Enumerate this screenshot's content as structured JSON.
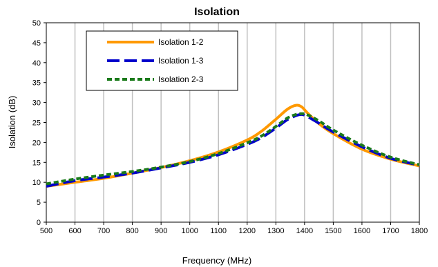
{
  "chart_data": {
    "type": "line",
    "title": "Isolation",
    "xlabel": "Frequency (MHz)",
    "ylabel": "Isolation (dB)",
    "xlim": [
      500,
      1800
    ],
    "ylim": [
      0,
      50
    ],
    "xticks": [
      500,
      600,
      700,
      800,
      900,
      1000,
      1100,
      1200,
      1300,
      1400,
      1500,
      1600,
      1700,
      1800
    ],
    "yticks": [
      0,
      5,
      10,
      15,
      20,
      25,
      30,
      35,
      40,
      45,
      50
    ],
    "grid": {
      "vertical": true,
      "horizontal": false
    },
    "legend": {
      "placement": "top-left"
    },
    "x": [
      500,
      600,
      700,
      800,
      900,
      1000,
      1100,
      1200,
      1250,
      1300,
      1340,
      1370,
      1390,
      1410,
      1450,
      1500,
      1600,
      1700,
      1800
    ],
    "series": [
      {
        "name": "Isolation 1-2",
        "color": "#FF9900",
        "dash": "solid",
        "values": [
          9.0,
          10.0,
          11.0,
          12.3,
          13.7,
          15.4,
          17.6,
          20.6,
          22.8,
          25.8,
          28.3,
          29.3,
          28.9,
          27.4,
          24.7,
          22.2,
          18.3,
          15.8,
          14.1
        ]
      },
      {
        "name": "Isolation 1-3",
        "color": "#0000CC",
        "dash": "long-dash",
        "values": [
          9.0,
          10.4,
          11.3,
          12.3,
          13.6,
          15.0,
          16.9,
          19.5,
          21.2,
          23.6,
          25.7,
          26.7,
          27.0,
          26.5,
          24.8,
          22.6,
          18.9,
          16.0,
          14.3
        ]
      },
      {
        "name": "Isolation 2-3",
        "color": "#1A7A1A",
        "dash": "short-dash",
        "values": [
          9.6,
          10.8,
          11.8,
          12.7,
          13.8,
          15.2,
          17.2,
          19.9,
          21.6,
          24.0,
          26.1,
          27.0,
          27.2,
          26.9,
          25.4,
          23.1,
          19.3,
          16.3,
          14.4
        ]
      }
    ]
  }
}
